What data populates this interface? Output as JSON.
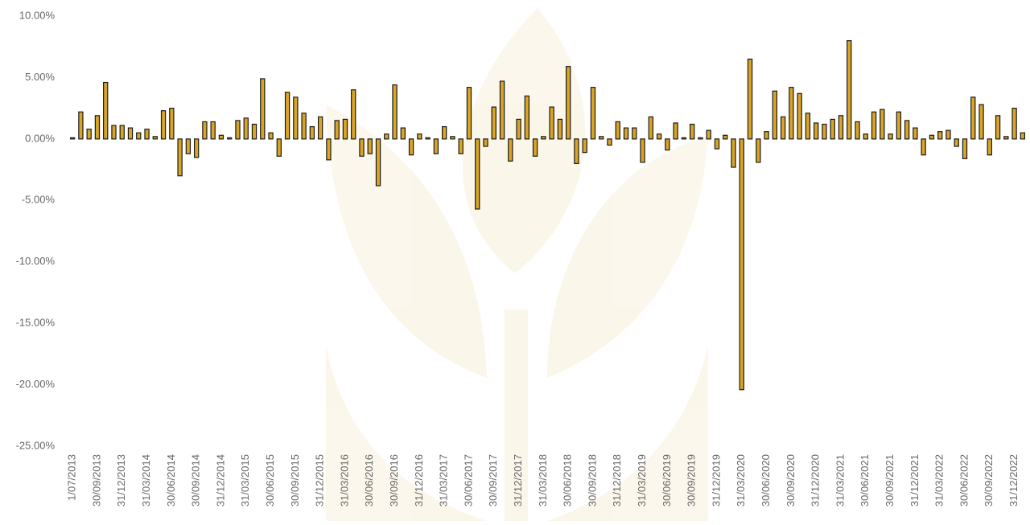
{
  "chart_data": {
    "type": "bar",
    "categories": [
      "1/07/2013",
      null,
      null,
      "30/09/2013",
      null,
      null,
      "31/12/2013",
      null,
      null,
      "31/03/2014",
      null,
      null,
      "30/06/2014",
      null,
      null,
      "30/09/2014",
      null,
      null,
      "31/12/2014",
      null,
      null,
      "31/03/2015",
      null,
      null,
      "30/06/2015",
      null,
      null,
      "30/09/2015",
      null,
      null,
      "31/12/2015",
      null,
      null,
      "31/03/2016",
      null,
      null,
      "30/06/2016",
      null,
      null,
      "30/09/2016",
      null,
      null,
      "31/12/2016",
      null,
      null,
      "31/03/2017",
      null,
      null,
      "30/06/2017",
      null,
      null,
      "30/09/2017",
      null,
      null,
      "31/12/2017",
      null,
      null,
      "31/03/2018",
      null,
      null,
      "30/06/2018",
      null,
      null,
      "30/09/2018",
      null,
      null,
      "31/12/2018",
      null,
      null,
      "31/03/2019",
      null,
      null,
      "30/06/2019",
      null,
      null,
      "30/09/2019",
      null,
      null,
      "31/12/2019",
      null,
      null,
      "31/03/2020",
      null,
      null,
      "30/06/2020",
      null,
      null,
      "30/09/2020",
      null,
      null,
      "31/12/2020",
      null,
      null,
      "31/03/2021",
      null,
      null,
      "30/06/2021",
      null,
      null,
      "30/09/2021",
      null,
      null,
      "31/12/2021",
      null,
      null,
      "31/03/2022",
      null,
      null,
      "30/06/2022",
      null,
      null,
      "30/09/2022",
      null,
      null,
      "31/12/2022",
      null
    ],
    "values": [
      0.1,
      2.2,
      0.8,
      1.9,
      4.6,
      1.1,
      1.1,
      0.9,
      0.5,
      0.8,
      0.2,
      2.3,
      2.5,
      -3.0,
      -1.2,
      -1.5,
      1.4,
      1.4,
      0.3,
      0.1,
      1.5,
      1.7,
      1.2,
      4.9,
      0.5,
      -1.4,
      3.8,
      3.4,
      2.1,
      1.0,
      1.8,
      -1.7,
      1.5,
      1.6,
      4.0,
      -1.4,
      -1.2,
      -3.8,
      0.4,
      4.4,
      0.9,
      -1.3,
      0.4,
      0.1,
      -1.2,
      1.0,
      0.2,
      -1.2,
      4.2,
      -5.7,
      -0.6,
      2.6,
      4.7,
      -1.8,
      1.6,
      3.5,
      -1.4,
      0.2,
      2.6,
      1.6,
      5.9,
      -2.0,
      -1.1,
      4.2,
      0.2,
      -0.5,
      1.4,
      0.9,
      0.9,
      -1.9,
      1.8,
      0.4,
      -0.9,
      1.3,
      0.1,
      1.2,
      0.1,
      0.7,
      -0.8,
      0.3,
      -2.3,
      -20.4,
      6.5,
      -1.9,
      0.6,
      3.9,
      1.8,
      4.2,
      3.7,
      2.1,
      1.3,
      1.2,
      1.6,
      1.9,
      8.0,
      1.4,
      0.4,
      2.2,
      2.4,
      0.4,
      2.2,
      1.5,
      0.9,
      -1.3,
      0.3,
      0.6,
      0.7,
      -0.6,
      -1.6,
      3.4,
      2.8,
      -1.3,
      1.9,
      0.2,
      2.5,
      0.5
    ],
    "color": "#d9a527",
    "ylim": [
      -25,
      10
    ],
    "yticks": [
      {
        "value": -25,
        "label": "-25.00%"
      },
      {
        "value": -20,
        "label": "-20.00%"
      },
      {
        "value": -15,
        "label": "-15.00%"
      },
      {
        "value": -10,
        "label": "-10.00%"
      },
      {
        "value": -5,
        "label": "-5.00%"
      },
      {
        "value": 0,
        "label": "0.00%"
      },
      {
        "value": 5,
        "label": "5.00%"
      },
      {
        "value": 10,
        "label": "10.00%"
      }
    ]
  }
}
